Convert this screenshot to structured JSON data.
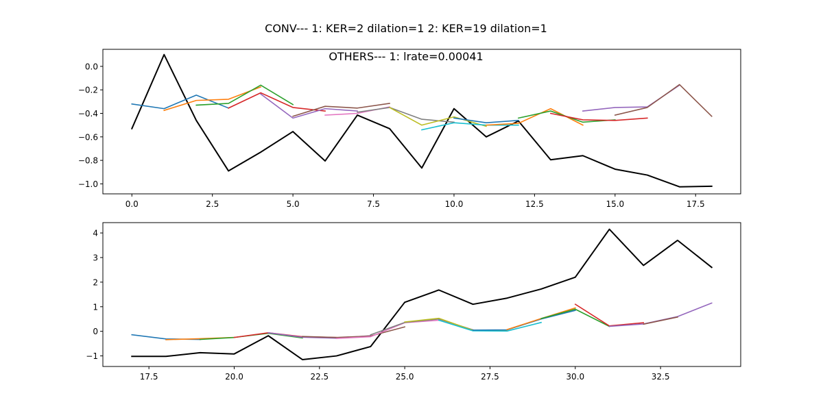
{
  "figure": {
    "suptitle": "CONV--- 1: KER=2   dilation=1   2: KER=19   dilation=1",
    "subtitle": "OTHERS--- 1: lrate=0.00041"
  },
  "chart_data": [
    {
      "type": "line",
      "title": "",
      "xlabel": "",
      "ylabel": "",
      "xlim": [
        -0.9,
        18.9
      ],
      "ylim": [
        -1.085,
        0.145
      ],
      "xticks": [
        0,
        2.5,
        5,
        7.5,
        10,
        12.5,
        15,
        17.5
      ],
      "xtick_labels": [
        "0.0",
        "2.5",
        "5.0",
        "7.5",
        "10.0",
        "12.5",
        "15.0",
        "17.5"
      ],
      "yticks": [
        0,
        -0.2,
        -0.4,
        -0.6,
        -0.8,
        -1.0
      ],
      "ytick_labels": [
        "0.0",
        "−0.2",
        "−0.4",
        "−0.6",
        "−0.8",
        "−1.0"
      ],
      "grid": false,
      "series": [
        {
          "color": "#000000",
          "x": [
            0,
            1,
            2,
            3,
            4,
            5,
            6,
            7,
            8,
            9,
            10,
            11,
            12,
            13,
            14,
            15,
            16,
            17,
            18
          ],
          "y": [
            -0.53,
            0.1,
            -0.46,
            -0.89,
            -0.73,
            -0.555,
            -0.805,
            -0.415,
            -0.53,
            -0.865,
            -0.36,
            -0.6,
            -0.465,
            -0.795,
            -0.76,
            -0.875,
            -0.925,
            -1.025,
            -1.02
          ]
        },
        {
          "color": "#1f77b4",
          "x": [
            0,
            1,
            2,
            3
          ],
          "y": [
            -0.32,
            -0.36,
            -0.245,
            -0.355
          ]
        },
        {
          "color": "#ff7f0e",
          "x": [
            1,
            2,
            3,
            4
          ],
          "y": [
            -0.375,
            -0.29,
            -0.28,
            -0.175
          ]
        },
        {
          "color": "#2ca02c",
          "x": [
            2,
            3,
            4,
            5
          ],
          "y": [
            -0.33,
            -0.315,
            -0.16,
            -0.325
          ]
        },
        {
          "color": "#d62728",
          "x": [
            3,
            4,
            5,
            6
          ],
          "y": [
            -0.355,
            -0.225,
            -0.35,
            -0.38
          ]
        },
        {
          "color": "#9467bd",
          "x": [
            4,
            5,
            6,
            7
          ],
          "y": [
            -0.235,
            -0.44,
            -0.36,
            -0.38
          ]
        },
        {
          "color": "#8c564b",
          "x": [
            5,
            6,
            7,
            8
          ],
          "y": [
            -0.425,
            -0.34,
            -0.355,
            -0.315
          ]
        },
        {
          "color": "#e377c2",
          "x": [
            6,
            7,
            8
          ],
          "y": [
            -0.415,
            -0.4,
            -0.345
          ]
        },
        {
          "color": "#7f7f7f",
          "x": [
            7,
            8,
            9,
            10
          ],
          "y": [
            -0.39,
            -0.35,
            -0.45,
            -0.475
          ]
        },
        {
          "color": "#bcbd22",
          "x": [
            8,
            9,
            10,
            11
          ],
          "y": [
            -0.35,
            -0.5,
            -0.43,
            -0.51
          ]
        },
        {
          "color": "#17becf",
          "x": [
            9,
            10,
            11,
            12
          ],
          "y": [
            -0.54,
            -0.48,
            -0.5,
            -0.5
          ]
        },
        {
          "color": "#1f77b4",
          "x": [
            10,
            11,
            12
          ],
          "y": [
            -0.44,
            -0.48,
            -0.46
          ]
        },
        {
          "color": "#ff7f0e",
          "x": [
            11,
            12,
            13,
            14
          ],
          "y": [
            -0.5,
            -0.485,
            -0.36,
            -0.5
          ]
        },
        {
          "color": "#2ca02c",
          "x": [
            12,
            13,
            14,
            15
          ],
          "y": [
            -0.44,
            -0.38,
            -0.475,
            -0.455
          ]
        },
        {
          "color": "#d62728",
          "x": [
            13,
            14,
            15,
            16
          ],
          "y": [
            -0.4,
            -0.455,
            -0.46,
            -0.44
          ]
        },
        {
          "color": "#9467bd",
          "x": [
            14,
            15,
            16,
            17
          ],
          "y": [
            -0.38,
            -0.35,
            -0.345,
            -0.16
          ]
        },
        {
          "color": "#8c564b",
          "x": [
            15,
            16,
            17,
            18
          ],
          "y": [
            -0.415,
            -0.35,
            -0.155,
            -0.425
          ]
        }
      ]
    },
    {
      "type": "line",
      "title": "",
      "xlabel": "",
      "ylabel": "",
      "xlim": [
        16.15,
        34.85
      ],
      "ylim": [
        -1.43,
        4.42
      ],
      "xticks": [
        17.5,
        20,
        22.5,
        25,
        27.5,
        30,
        32.5
      ],
      "xtick_labels": [
        "17.5",
        "20.0",
        "22.5",
        "25.0",
        "27.5",
        "30.0",
        "32.5"
      ],
      "yticks": [
        4,
        3,
        2,
        1,
        0,
        -1
      ],
      "ytick_labels": [
        "4",
        "3",
        "2",
        "1",
        "0",
        "−1"
      ],
      "grid": false,
      "series": [
        {
          "color": "#000000",
          "x": [
            17,
            18,
            19,
            20,
            21,
            22,
            23,
            24,
            25,
            26,
            27,
            28,
            29,
            30,
            31,
            32,
            33,
            34
          ],
          "y": [
            -1.02,
            -1.02,
            -0.87,
            -0.92,
            -0.18,
            -1.15,
            -1.0,
            -0.62,
            1.18,
            1.68,
            1.1,
            1.35,
            1.72,
            2.2,
            4.15,
            2.68,
            3.7,
            2.6
          ]
        },
        {
          "color": "#1f77b4",
          "x": [
            17,
            18,
            19
          ],
          "y": [
            -0.14,
            -0.31,
            -0.33
          ]
        },
        {
          "color": "#ff7f0e",
          "x": [
            18,
            19,
            20
          ],
          "y": [
            -0.34,
            -0.3,
            -0.25
          ]
        },
        {
          "color": "#2ca02c",
          "x": [
            19,
            20,
            21,
            22
          ],
          "y": [
            -0.33,
            -0.25,
            -0.08,
            -0.27
          ]
        },
        {
          "color": "#d62728",
          "x": [
            20,
            21,
            22,
            23
          ],
          "y": [
            -0.25,
            -0.06,
            -0.22,
            -0.25
          ]
        },
        {
          "color": "#9467bd",
          "x": [
            21,
            22,
            23,
            24
          ],
          "y": [
            -0.06,
            -0.24,
            -0.28,
            -0.18
          ]
        },
        {
          "color": "#8c564b",
          "x": [
            22,
            23,
            24,
            25
          ],
          "y": [
            -0.21,
            -0.25,
            -0.19,
            0.18
          ]
        },
        {
          "color": "#e377c2",
          "x": [
            23,
            24,
            25,
            26
          ],
          "y": [
            -0.29,
            -0.22,
            0.35,
            0.45
          ]
        },
        {
          "color": "#7f7f7f",
          "x": [
            24,
            25,
            26,
            27
          ],
          "y": [
            -0.14,
            0.36,
            0.5,
            0.06
          ]
        },
        {
          "color": "#bcbd22",
          "x": [
            25,
            26,
            27,
            28
          ],
          "y": [
            0.38,
            0.53,
            0.04,
            0.05
          ]
        },
        {
          "color": "#17becf",
          "x": [
            26,
            27,
            28,
            29
          ],
          "y": [
            0.45,
            0.02,
            0.01,
            0.36
          ]
        },
        {
          "color": "#1f77b4",
          "x": [
            27,
            28,
            29,
            30
          ],
          "y": [
            0.05,
            0.06,
            0.5,
            0.85
          ]
        },
        {
          "color": "#ff7f0e",
          "x": [
            28,
            29,
            30
          ],
          "y": [
            0.07,
            0.52,
            0.95
          ]
        },
        {
          "color": "#2ca02c",
          "x": [
            29,
            30,
            31
          ],
          "y": [
            0.52,
            0.9,
            0.2
          ]
        },
        {
          "color": "#d62728",
          "x": [
            30,
            31,
            32
          ],
          "y": [
            1.1,
            0.22,
            0.35
          ]
        },
        {
          "color": "#9467bd",
          "x": [
            31,
            32,
            33,
            34
          ],
          "y": [
            0.2,
            0.3,
            0.6,
            1.15
          ]
        },
        {
          "color": "#8c564b",
          "x": [
            32,
            33
          ],
          "y": [
            0.29,
            0.58
          ]
        }
      ]
    }
  ]
}
